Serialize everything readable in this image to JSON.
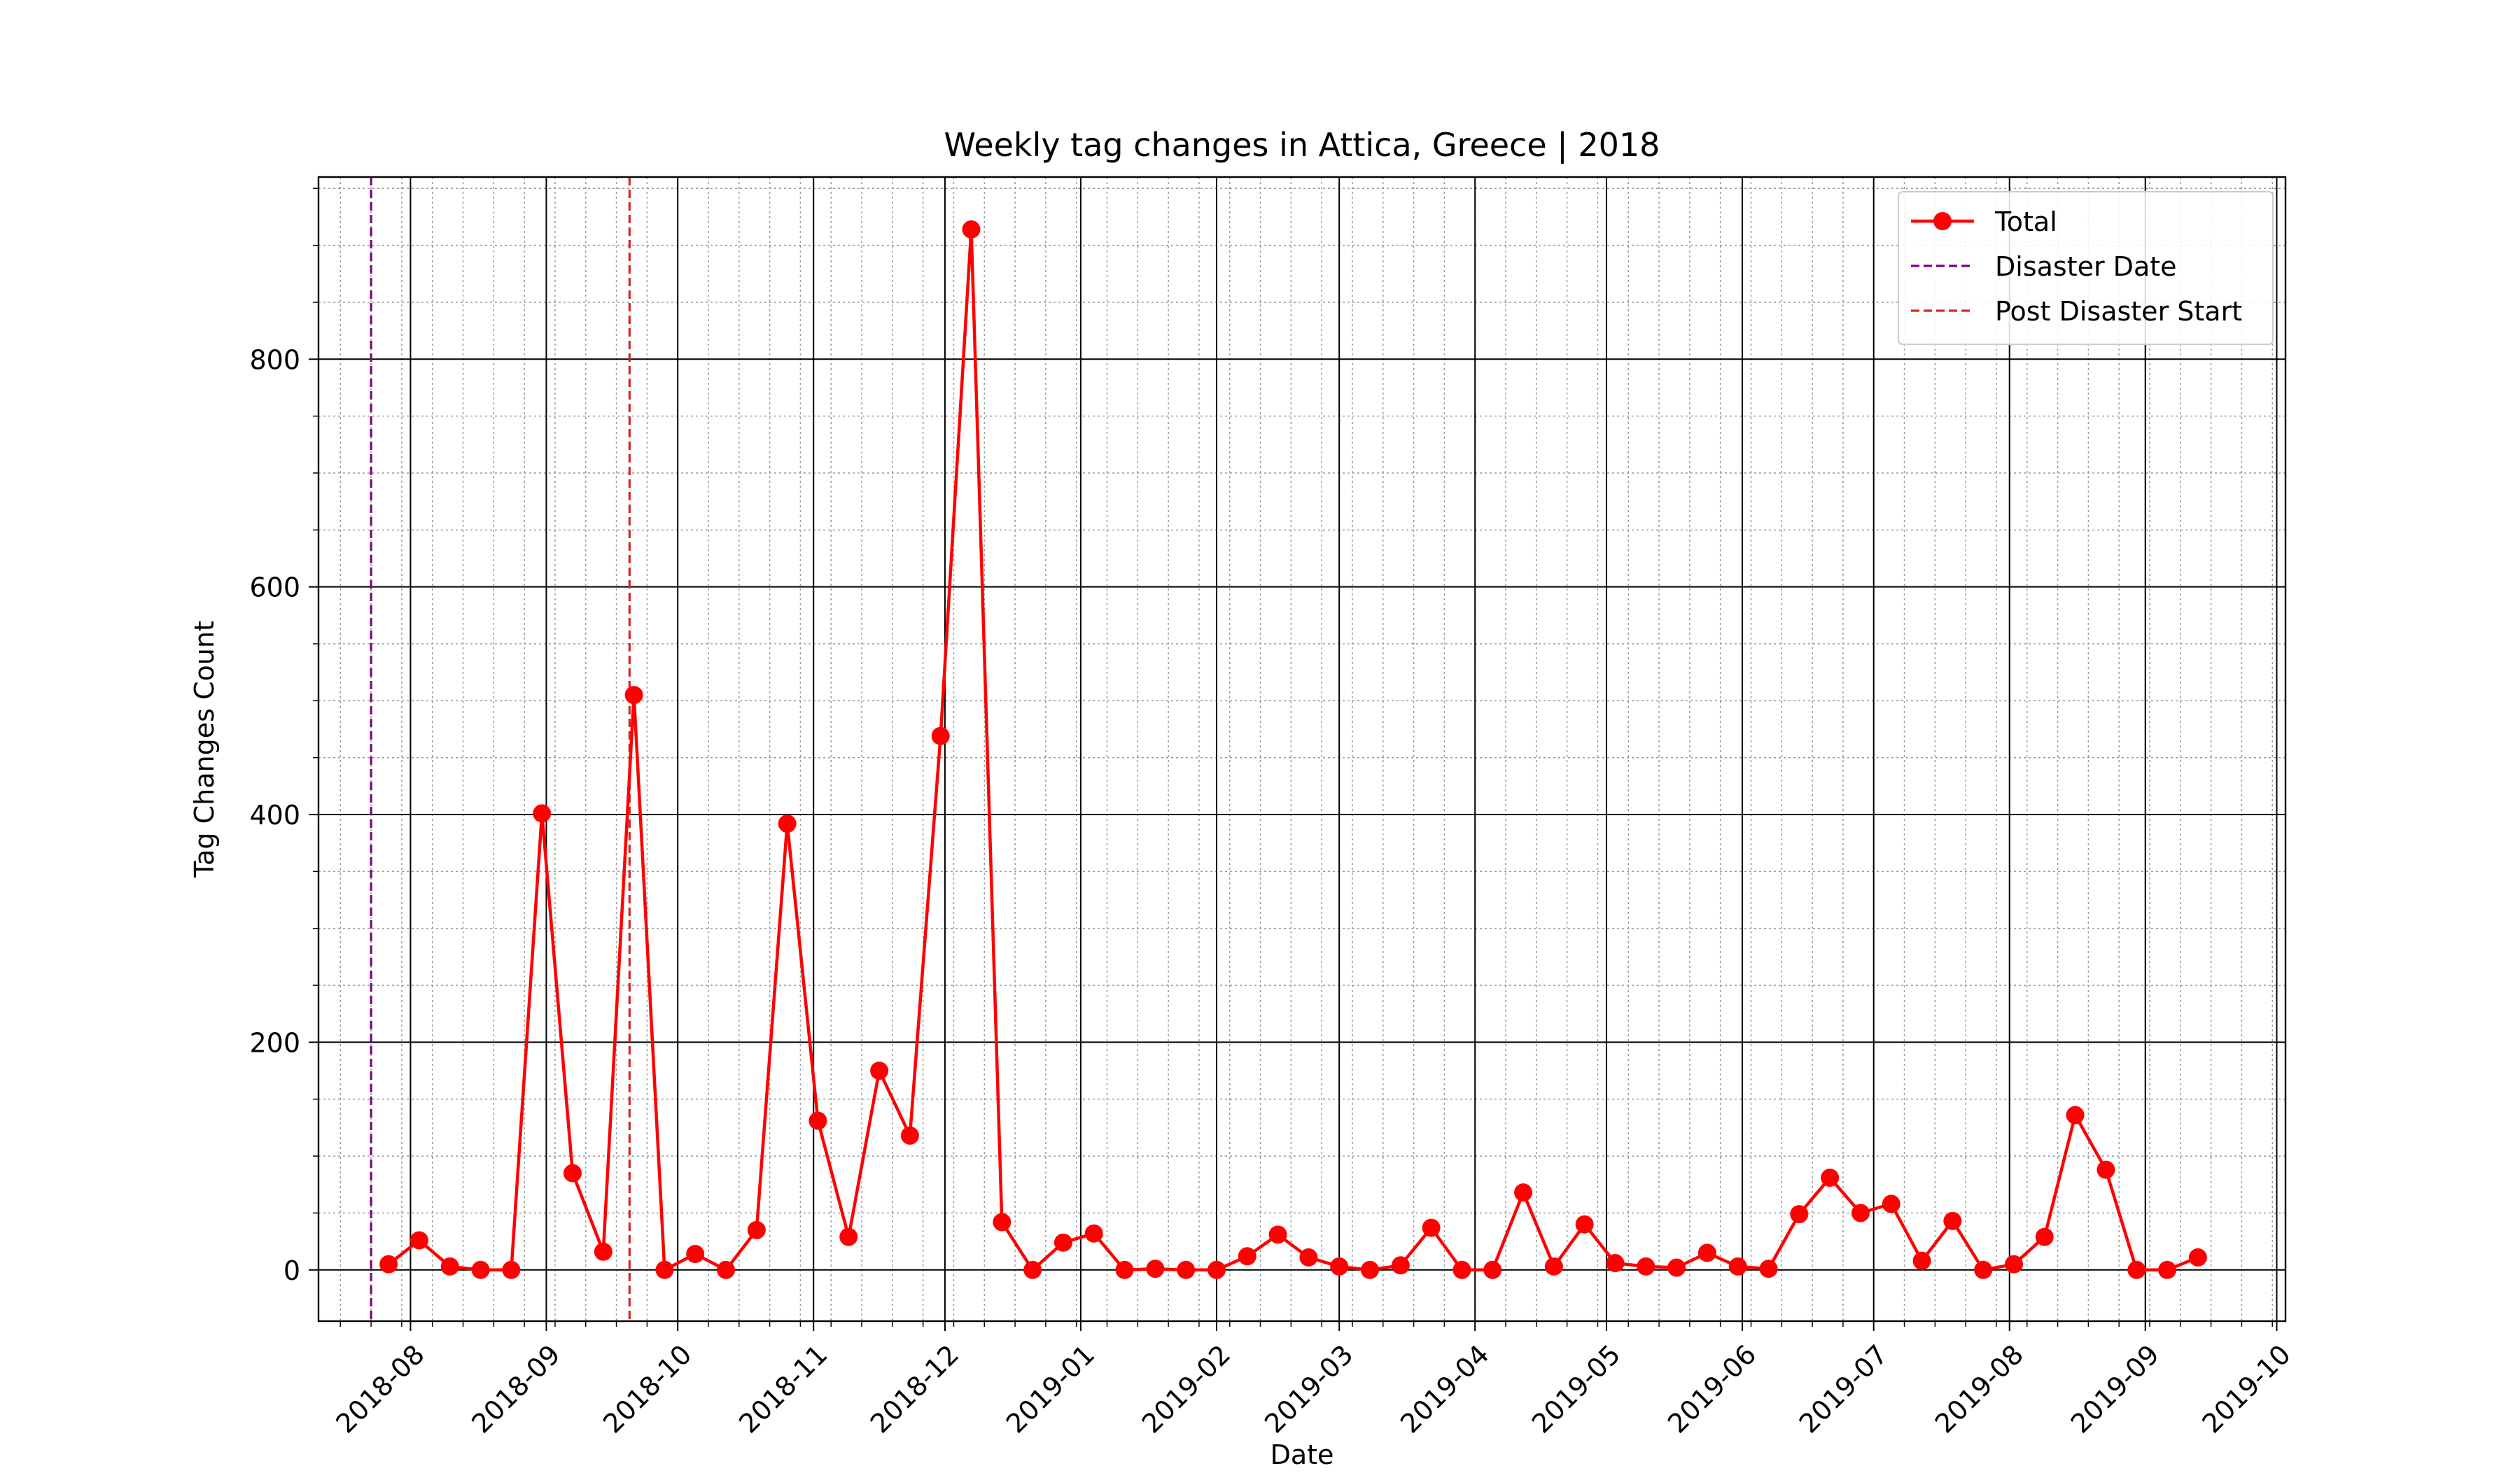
{
  "chart_data": {
    "type": "line",
    "title": "Weekly tag changes in Attica, Greece | 2018",
    "xlabel": "Date",
    "ylabel": "Tag Changes Count",
    "x_axis_type": "date",
    "xlim": [
      "2018-07-11",
      "2019-10-03"
    ],
    "ylim": [
      -45,
      960
    ],
    "yticks": [
      0,
      200,
      400,
      600,
      800
    ],
    "xtick_labels": [
      "2018-08",
      "2018-09",
      "2018-10",
      "2018-11",
      "2018-12",
      "2019-01",
      "2019-02",
      "2019-03",
      "2019-04",
      "2019-05",
      "2019-06",
      "2019-07",
      "2019-08",
      "2019-09",
      "2019-10"
    ],
    "grid": {
      "major": true,
      "minor": true
    },
    "legend_position": "top-right",
    "vlines": [
      {
        "name": "Disaster Date",
        "date": "2018-07-23",
        "color": "#800080",
        "style": "dashed"
      },
      {
        "name": "Post Disaster Start",
        "date": "2018-09-20",
        "color": "#d62728",
        "style": "dashed"
      }
    ],
    "series": [
      {
        "name": "Total",
        "color": "#ff0000",
        "marker": "circle",
        "x": [
          "2018-07-27",
          "2018-08-03",
          "2018-08-10",
          "2018-08-17",
          "2018-08-24",
          "2018-08-31",
          "2018-09-07",
          "2018-09-14",
          "2018-09-21",
          "2018-09-28",
          "2018-10-05",
          "2018-10-12",
          "2018-10-19",
          "2018-10-26",
          "2018-11-02",
          "2018-11-09",
          "2018-11-16",
          "2018-11-23",
          "2018-11-30",
          "2018-12-07",
          "2018-12-14",
          "2018-12-21",
          "2018-12-28",
          "2019-01-04",
          "2019-01-11",
          "2019-01-18",
          "2019-01-25",
          "2019-02-01",
          "2019-02-08",
          "2019-02-15",
          "2019-02-22",
          "2019-03-01",
          "2019-03-08",
          "2019-03-15",
          "2019-03-22",
          "2019-03-29",
          "2019-04-05",
          "2019-04-12",
          "2019-04-19",
          "2019-04-26",
          "2019-05-03",
          "2019-05-10",
          "2019-05-17",
          "2019-05-24",
          "2019-05-31",
          "2019-06-07",
          "2019-06-14",
          "2019-06-21",
          "2019-06-28",
          "2019-07-05",
          "2019-07-12",
          "2019-07-19",
          "2019-07-26",
          "2019-08-02",
          "2019-08-09",
          "2019-08-16",
          "2019-08-23",
          "2019-08-30",
          "2019-09-06",
          "2019-09-13"
        ],
        "y": [
          5,
          26,
          3,
          0,
          0,
          401,
          85,
          16,
          505,
          0,
          14,
          0,
          35,
          392,
          131,
          29,
          175,
          118,
          469,
          914,
          42,
          0,
          24,
          32,
          0,
          1,
          0,
          0,
          12,
          31,
          11,
          3,
          0,
          4,
          37,
          0,
          0,
          68,
          3,
          40,
          6,
          3,
          2,
          15,
          3,
          1,
          49,
          81,
          50,
          58,
          8,
          43,
          0,
          5,
          29,
          136,
          88,
          0,
          0,
          11
        ]
      }
    ]
  }
}
